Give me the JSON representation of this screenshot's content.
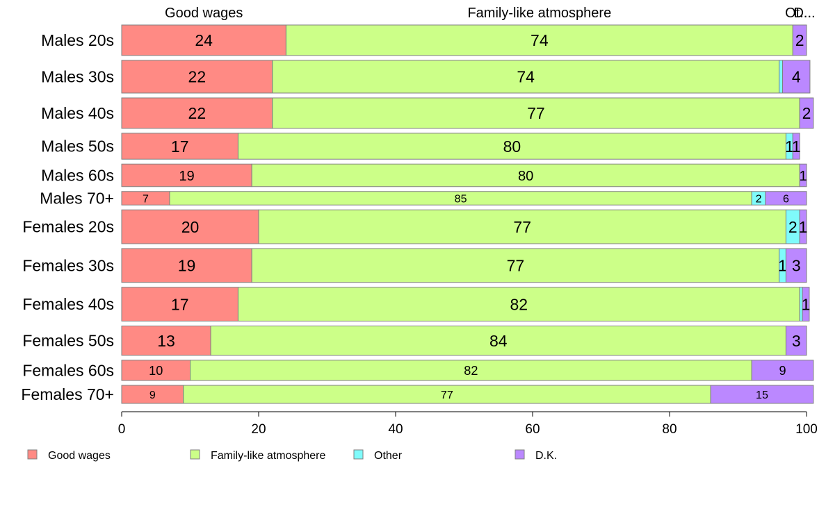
{
  "chart_data": {
    "type": "bar",
    "orientation": "horizontal",
    "stacked": true,
    "xlim": [
      0,
      100
    ],
    "x_ticks": [
      "0",
      "20",
      "40",
      "60",
      "80",
      "100"
    ],
    "grid": false,
    "legend_position": "bottom",
    "top_labels": [
      "Good wages",
      "Family-like atmosphere",
      "Ot...",
      "D..."
    ],
    "categories": [
      "Males 20s",
      "Males 30s",
      "Males 40s",
      "Males 50s",
      "Males 60s",
      "Males 70+",
      "Females 20s",
      "Females 30s",
      "Females 40s",
      "Females 50s",
      "Females 60s",
      "Females 70+"
    ],
    "weights": [
      13.5,
      14.5,
      13.5,
      11.5,
      10,
      6,
      15,
      15,
      15,
      13,
      9,
      8
    ],
    "series": [
      {
        "name": "Good wages",
        "color": "#ff8a84",
        "values": [
          24,
          22,
          22,
          17,
          19,
          7,
          20,
          19,
          17,
          13,
          10,
          9
        ],
        "labels": [
          "24",
          "22",
          "22",
          "17",
          "19",
          "7",
          "20",
          "19",
          "17",
          "13",
          "10",
          "9"
        ]
      },
      {
        "name": "Family-like atmosphere",
        "color": "#ccff88",
        "values": [
          74,
          74,
          77,
          80,
          80,
          85,
          77,
          77,
          82,
          84,
          82,
          77
        ],
        "labels": [
          "74",
          "74",
          "77",
          "80",
          "80",
          "85",
          "77",
          "77",
          "82",
          "84",
          "82",
          "77"
        ]
      },
      {
        "name": "Other",
        "color": "#7ffbfb",
        "values": [
          0,
          0.5,
          0,
          1,
          0,
          2,
          2,
          1,
          0.4,
          0,
          0,
          0
        ],
        "labels": [
          "",
          "",
          "",
          "1",
          "",
          "2",
          "2",
          "1",
          "",
          "",
          "",
          ""
        ]
      },
      {
        "name": "D.K.",
        "color": "#bb88ff",
        "values": [
          2,
          4,
          2,
          1,
          1,
          6,
          1,
          3,
          1,
          3,
          9,
          15
        ],
        "labels": [
          "2",
          "4",
          "2",
          "1",
          "1",
          "6",
          "1",
          "3",
          "1",
          "3",
          "9",
          "15"
        ]
      }
    ]
  }
}
